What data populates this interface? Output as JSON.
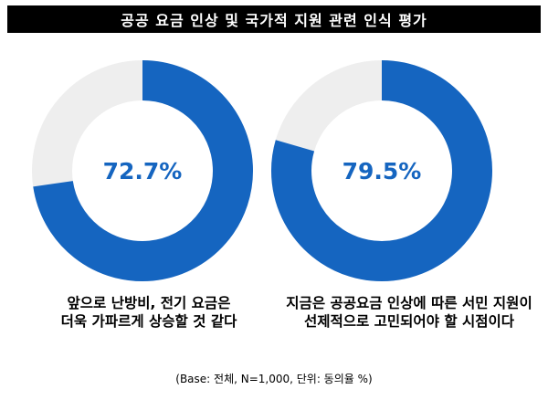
{
  "title": "공공 요금 인상 및 국가적 지원 관련 인식 평가",
  "chart_data": [
    {
      "type": "pie",
      "value": 72.7,
      "label": "72.7%",
      "caption_lines": [
        "앞으로 난방비, 전기 요금은",
        "더욱 가파르게 상승할 것 같다"
      ]
    },
    {
      "type": "pie",
      "value": 79.5,
      "label": "79.5%",
      "caption_lines": [
        "지금은 공공요금 인상에 따른 서민 지원이",
        "선제적으로 고민되어야 할 시점이다"
      ]
    }
  ],
  "colors": {
    "fill": "#1565C0",
    "track": "#EEEEEE",
    "title_bg": "#000000"
  },
  "footnote": "(Base: 전체, N=1,000, 단위: 동의율 %)"
}
